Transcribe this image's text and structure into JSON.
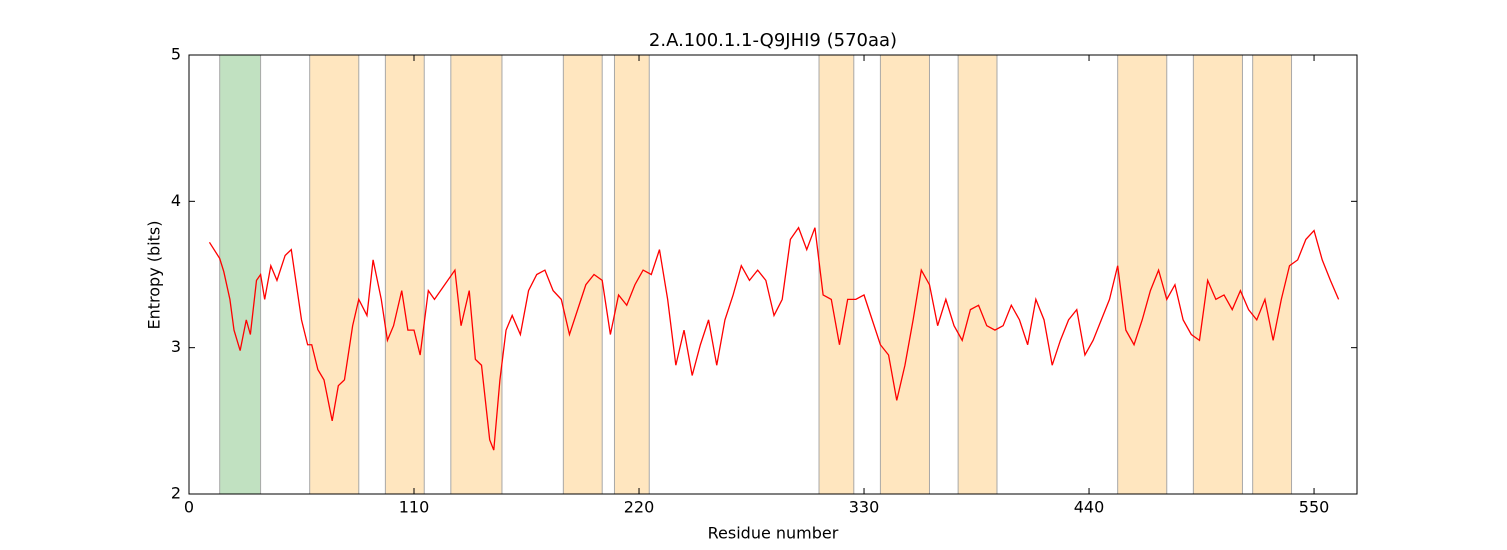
{
  "chart_data": {
    "type": "line",
    "title": "2.A.100.1.1-Q9JHI9 (570aa)",
    "x_label": "Residue number",
    "y_label": "Entropy (bits)",
    "xlim": [
      0,
      571
    ],
    "ylim": [
      2,
      5
    ],
    "xticks": [
      0,
      110,
      220,
      330,
      440,
      550
    ],
    "yticks": [
      2,
      3,
      4,
      5
    ],
    "regions": [
      {
        "start": 15,
        "end": 35,
        "color": "#c1e1c1"
      },
      {
        "start": 59,
        "end": 83,
        "color": "#ffe6bf"
      },
      {
        "start": 96,
        "end": 115,
        "color": "#ffe6bf"
      },
      {
        "start": 128,
        "end": 153,
        "color": "#ffe6bf"
      },
      {
        "start": 183,
        "end": 202,
        "color": "#ffe6bf"
      },
      {
        "start": 208,
        "end": 225,
        "color": "#ffe6bf"
      },
      {
        "start": 308,
        "end": 325,
        "color": "#ffe6bf"
      },
      {
        "start": 338,
        "end": 362,
        "color": "#ffe6bf"
      },
      {
        "start": 376,
        "end": 395,
        "color": "#ffe6bf"
      },
      {
        "start": 454,
        "end": 478,
        "color": "#ffe6bf"
      },
      {
        "start": 491,
        "end": 515,
        "color": "#ffe6bf"
      },
      {
        "start": 520,
        "end": 539,
        "color": "#ffe6bf"
      }
    ],
    "x": [
      10,
      15,
      17,
      20,
      22,
      25,
      28,
      30,
      33,
      35,
      37,
      40,
      43,
      47,
      50,
      55,
      58,
      60,
      63,
      66,
      70,
      73,
      76,
      80,
      83,
      87,
      90,
      94,
      97,
      100,
      104,
      107,
      110,
      113,
      117,
      120,
      125,
      130,
      133,
      137,
      140,
      143,
      147,
      149,
      152,
      155,
      158,
      162,
      166,
      170,
      174,
      178,
      182,
      186,
      190,
      194,
      198,
      202,
      206,
      210,
      214,
      218,
      222,
      226,
      230,
      234,
      238,
      242,
      246,
      250,
      254,
      258,
      262,
      266,
      270,
      274,
      278,
      282,
      286,
      290,
      294,
      298,
      302,
      306,
      310,
      314,
      318,
      322,
      326,
      330,
      334,
      338,
      342,
      346,
      350,
      354,
      358,
      362,
      366,
      370,
      374,
      378,
      382,
      386,
      390,
      394,
      398,
      402,
      406,
      410,
      414,
      418,
      422,
      426,
      430,
      434,
      438,
      442,
      446,
      450,
      454,
      458,
      462,
      466,
      470,
      474,
      478,
      482,
      486,
      490,
      494,
      498,
      502,
      506,
      510,
      514,
      518,
      522,
      526,
      530,
      534,
      538,
      542,
      546,
      550,
      554,
      558,
      562
    ],
    "series": [
      {
        "color": "#ff0000",
        "values": [
          3.72,
          3.61,
          3.52,
          3.33,
          3.12,
          2.98,
          3.19,
          3.09,
          3.46,
          3.5,
          3.33,
          3.56,
          3.46,
          3.63,
          3.67,
          3.19,
          3.02,
          3.02,
          2.85,
          2.78,
          2.5,
          2.74,
          2.78,
          3.15,
          3.33,
          3.22,
          3.6,
          3.33,
          3.05,
          3.15,
          3.39,
          3.12,
          3.12,
          2.95,
          3.39,
          3.33,
          3.43,
          3.53,
          3.15,
          3.39,
          2.92,
          2.88,
          2.37,
          2.3,
          2.78,
          3.12,
          3.22,
          3.09,
          3.39,
          3.5,
          3.53,
          3.39,
          3.33,
          3.09,
          3.26,
          3.43,
          3.5,
          3.46,
          3.09,
          3.36,
          3.29,
          3.43,
          3.53,
          3.5,
          3.67,
          3.33,
          2.88,
          3.12,
          2.81,
          3.02,
          3.19,
          2.88,
          3.19,
          3.36,
          3.56,
          3.46,
          3.53,
          3.46,
          3.22,
          3.33,
          3.74,
          3.82,
          3.67,
          3.82,
          3.36,
          3.33,
          3.02,
          3.33,
          3.33,
          3.36,
          3.19,
          3.02,
          2.95,
          2.64,
          2.88,
          3.19,
          3.53,
          3.43,
          3.15,
          3.33,
          3.15,
          3.05,
          3.26,
          3.29,
          3.15,
          3.12,
          3.15,
          3.29,
          3.19,
          3.02,
          3.33,
          3.19,
          2.88,
          3.05,
          3.19,
          3.26,
          2.95,
          3.05,
          3.19,
          3.33,
          3.56,
          3.12,
          3.02,
          3.19,
          3.39,
          3.53,
          3.33,
          3.43,
          3.19,
          3.09,
          3.05,
          3.46,
          3.33,
          3.36,
          3.26,
          3.39,
          3.26,
          3.19,
          3.33,
          3.05,
          3.33,
          3.56,
          3.6,
          3.74,
          3.8,
          3.6,
          3.46,
          3.33
        ]
      }
    ]
  }
}
